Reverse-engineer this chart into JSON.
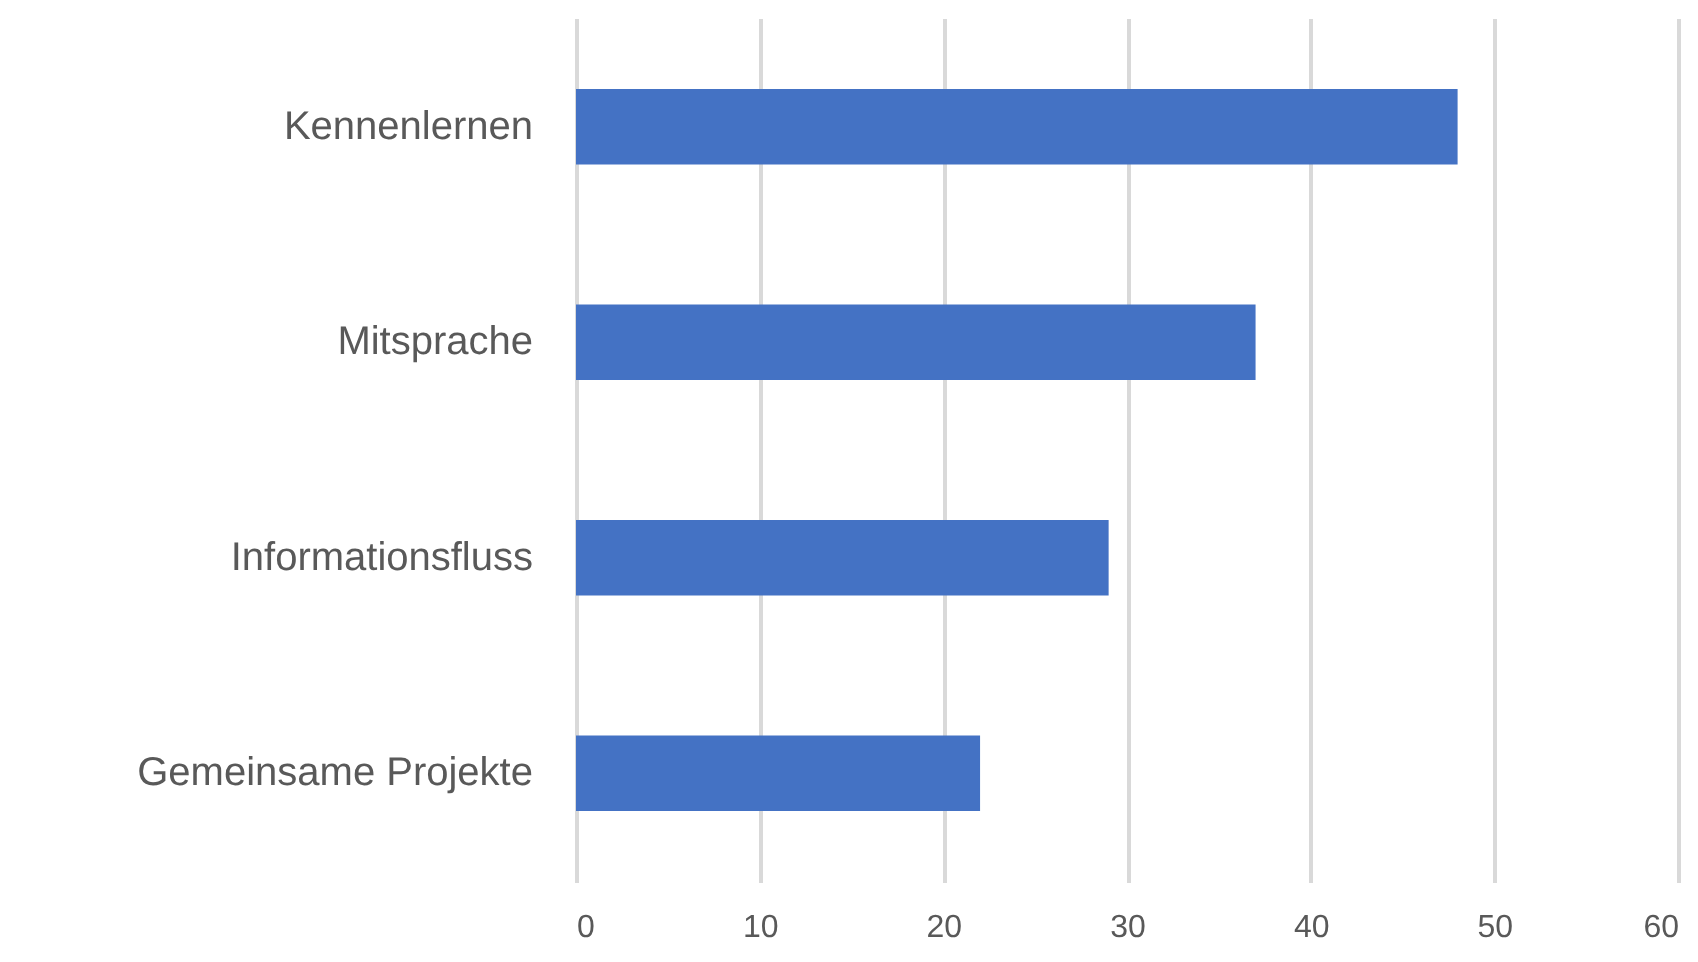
{
  "chart_data": {
    "type": "bar",
    "orientation": "horizontal",
    "categories": [
      "Kennenlernen",
      "Mitsprache",
      "Informationsfluss",
      "Gemeinsame Projekte"
    ],
    "values": [
      48,
      37,
      29,
      22
    ],
    "color": "#4472c4",
    "xlim": [
      0,
      60
    ],
    "xticks": [
      0,
      10,
      20,
      30,
      40,
      50,
      60
    ],
    "grid": "x"
  }
}
